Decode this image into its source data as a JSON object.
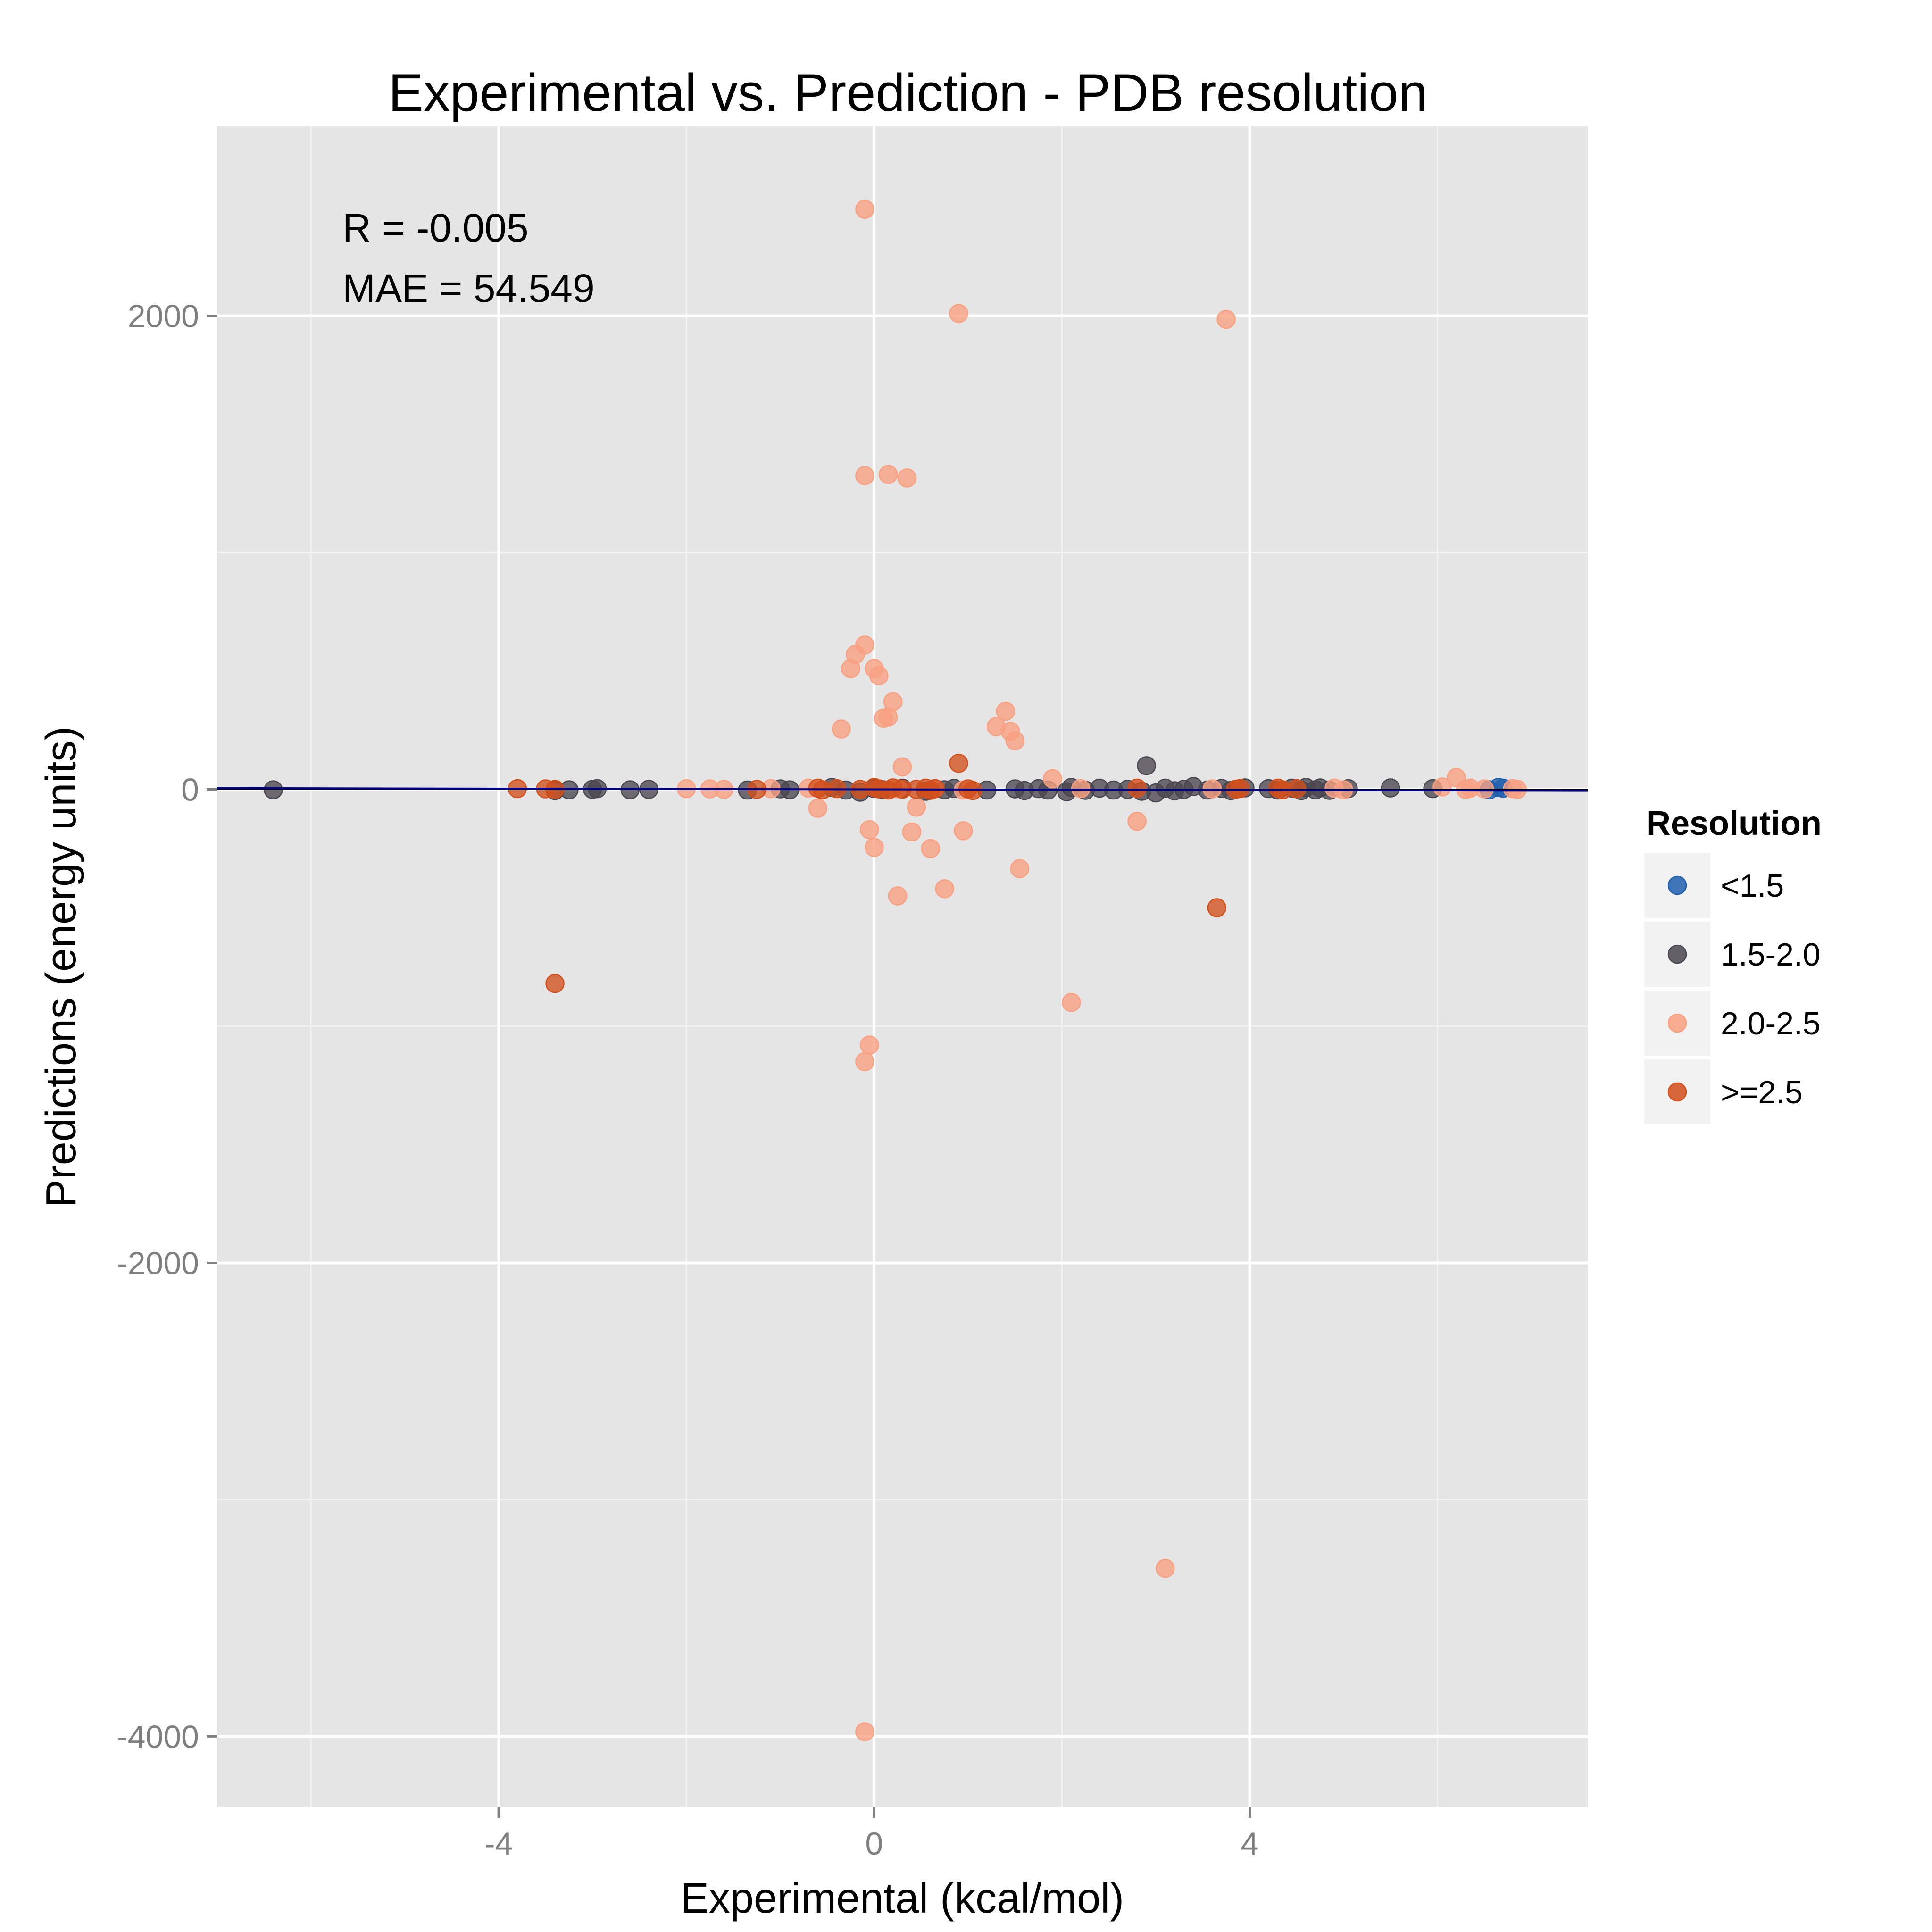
{
  "chart_data": {
    "type": "scatter",
    "title": "Experimental vs. Prediction - PDB resolution",
    "xlabel": "Experimental (kcal/mol)",
    "ylabel": "Predictions (energy units)",
    "xlim": [
      -7.0,
      7.6
    ],
    "ylim": [
      -4300,
      2800
    ],
    "x_ticks": [
      -4,
      0,
      4
    ],
    "y_ticks": [
      2000,
      0,
      -2000,
      -4000
    ],
    "grid": true,
    "annotations": [
      "R = -0.005",
      "MAE = 54.549"
    ],
    "legend": {
      "title": "Resolution",
      "placement": "right"
    },
    "fit_line": {
      "intercept": 0,
      "slope": -0.8
    },
    "series": [
      {
        "name": "<1.5",
        "color": "#1f5fae",
        "points": [
          [
            6.65,
            8
          ],
          [
            6.55,
            -2
          ],
          [
            6.7,
            5
          ]
        ]
      },
      {
        "name": "1.5-2.0",
        "color": "#4a4650",
        "points": [
          [
            -6.4,
            -2
          ],
          [
            -3.4,
            -5
          ],
          [
            -3.25,
            -2
          ],
          [
            -3.0,
            0
          ],
          [
            -2.95,
            3
          ],
          [
            -2.6,
            -2
          ],
          [
            -2.4,
            0
          ],
          [
            -1.35,
            -3
          ],
          [
            -1.0,
            2
          ],
          [
            -0.9,
            -2
          ],
          [
            -0.45,
            8
          ],
          [
            -0.3,
            -3
          ],
          [
            -0.15,
            -12
          ],
          [
            0.0,
            3
          ],
          [
            0.1,
            -2
          ],
          [
            0.3,
            5
          ],
          [
            0.55,
            -8
          ],
          [
            0.75,
            -2
          ],
          [
            0.85,
            4
          ],
          [
            1.2,
            -3
          ],
          [
            1.5,
            2
          ],
          [
            1.6,
            -5
          ],
          [
            1.75,
            3
          ],
          [
            1.85,
            -3
          ],
          [
            2.05,
            -10
          ],
          [
            2.1,
            8
          ],
          [
            2.25,
            -4
          ],
          [
            2.4,
            5
          ],
          [
            2.55,
            -3
          ],
          [
            2.7,
            0
          ],
          [
            2.85,
            -8
          ],
          [
            2.9,
            100
          ],
          [
            3.0,
            -15
          ],
          [
            3.1,
            5
          ],
          [
            3.2,
            -6
          ],
          [
            3.3,
            0
          ],
          [
            3.4,
            12
          ],
          [
            3.55,
            -3
          ],
          [
            3.7,
            4
          ],
          [
            3.8,
            -5
          ],
          [
            3.95,
            6
          ],
          [
            4.2,
            3
          ],
          [
            4.3,
            -3
          ],
          [
            4.45,
            5
          ],
          [
            4.55,
            -5
          ],
          [
            4.6,
            8
          ],
          [
            4.7,
            -2
          ],
          [
            4.75,
            6
          ],
          [
            4.85,
            -4
          ],
          [
            5.05,
            3
          ],
          [
            5.5,
            6
          ],
          [
            5.95,
            3
          ]
        ]
      },
      {
        "name": "2.0-2.5",
        "color": "#f9a080",
        "points": [
          [
            -0.1,
            2450
          ],
          [
            0.9,
            2010
          ],
          [
            3.75,
            1985
          ],
          [
            -0.1,
            1325
          ],
          [
            0.15,
            1330
          ],
          [
            0.35,
            1315
          ],
          [
            -0.1,
            610
          ],
          [
            -0.2,
            570
          ],
          [
            -0.25,
            510
          ],
          [
            0.0,
            510
          ],
          [
            0.05,
            480
          ],
          [
            0.2,
            370
          ],
          [
            0.1,
            300
          ],
          [
            0.15,
            305
          ],
          [
            -0.35,
            255
          ],
          [
            1.4,
            330
          ],
          [
            1.3,
            265
          ],
          [
            1.45,
            245
          ],
          [
            1.5,
            205
          ],
          [
            0.3,
            95
          ],
          [
            1.9,
            45
          ],
          [
            6.2,
            50
          ],
          [
            6.05,
            10
          ],
          [
            -0.6,
            -80
          ],
          [
            0.45,
            -75
          ],
          [
            -0.05,
            -170
          ],
          [
            0.4,
            -180
          ],
          [
            0.95,
            -175
          ],
          [
            0.0,
            -245
          ],
          [
            0.6,
            -250
          ],
          [
            2.8,
            -135
          ],
          [
            1.55,
            -335
          ],
          [
            0.25,
            -450
          ],
          [
            0.75,
            -420
          ],
          [
            2.1,
            -900
          ],
          [
            -0.05,
            -1080
          ],
          [
            -0.1,
            -1150
          ],
          [
            3.1,
            -3290
          ],
          [
            -0.1,
            -3980
          ],
          [
            -2.0,
            3
          ],
          [
            -1.75,
            2
          ],
          [
            -1.6,
            0
          ],
          [
            -1.1,
            3
          ],
          [
            -0.7,
            5
          ],
          [
            0.25,
            2
          ],
          [
            0.65,
            3
          ],
          [
            0.95,
            -3
          ],
          [
            2.2,
            3
          ],
          [
            3.6,
            2
          ],
          [
            4.9,
            5
          ],
          [
            5.0,
            -2
          ],
          [
            6.3,
            0
          ],
          [
            6.35,
            5
          ],
          [
            6.5,
            2
          ],
          [
            6.8,
            3
          ],
          [
            6.85,
            0
          ]
        ]
      },
      {
        "name": ">=2.5",
        "color": "#d24f1b",
        "points": [
          [
            -3.4,
            -820
          ],
          [
            3.65,
            -500
          ],
          [
            0.9,
            110
          ],
          [
            -3.8,
            3
          ],
          [
            -3.5,
            2
          ],
          [
            -3.4,
            0
          ],
          [
            -1.25,
            0
          ],
          [
            -0.6,
            5
          ],
          [
            -0.55,
            -2
          ],
          [
            -0.4,
            3
          ],
          [
            -0.15,
            0
          ],
          [
            0.0,
            8
          ],
          [
            0.05,
            2
          ],
          [
            0.15,
            -3
          ],
          [
            0.2,
            6
          ],
          [
            0.3,
            1
          ],
          [
            0.45,
            0
          ],
          [
            0.55,
            5
          ],
          [
            0.6,
            -4
          ],
          [
            0.65,
            3
          ],
          [
            1.0,
            2
          ],
          [
            1.05,
            -5
          ],
          [
            2.8,
            5
          ],
          [
            3.85,
            0
          ],
          [
            3.9,
            4
          ],
          [
            4.3,
            5
          ],
          [
            4.35,
            -2
          ],
          [
            4.5,
            3
          ]
        ]
      }
    ]
  }
}
